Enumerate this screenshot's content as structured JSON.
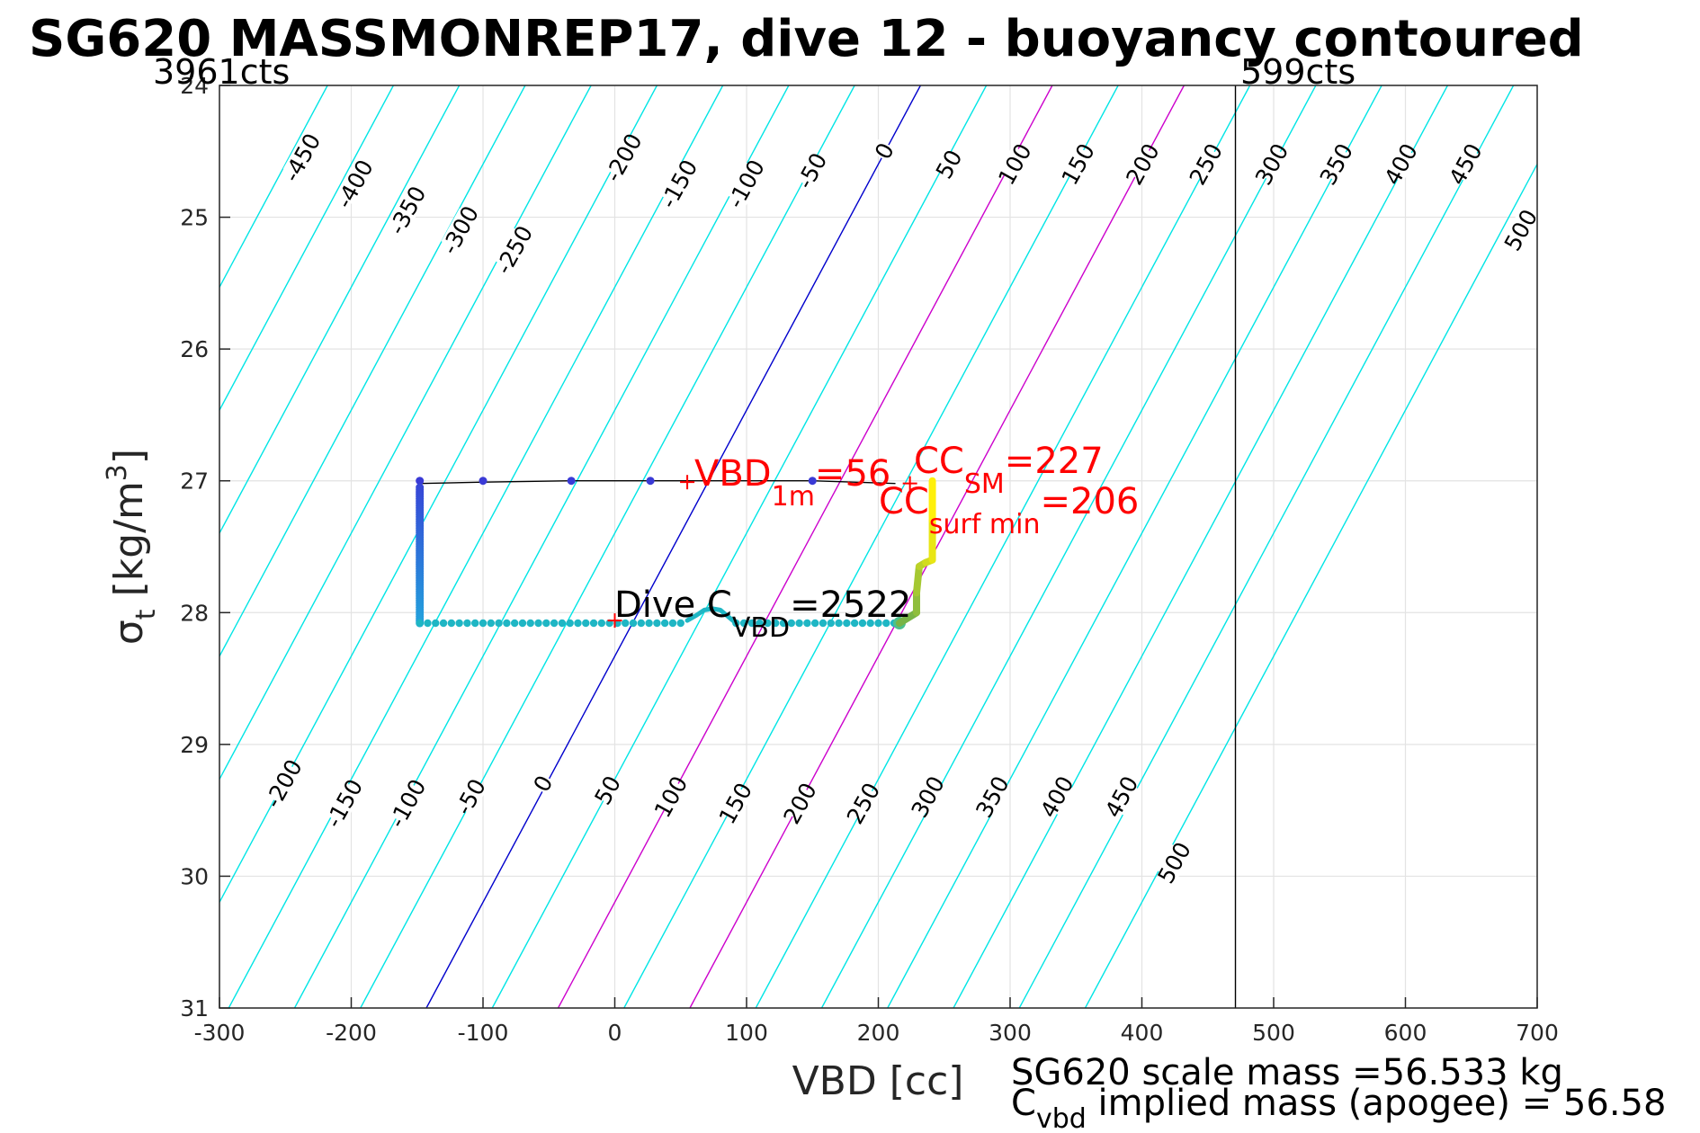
{
  "title": "SG620 MASSMONREP17, dive 12 - buoyancy contoured",
  "chart_data": {
    "type": "scatter",
    "xlabel": "VBD [cc]",
    "ylabel_main": "σ",
    "ylabel_sub": "t",
    "ylabel_unit": " [kg/m",
    "ylabel_sup": "3",
    "ylabel_close": "]",
    "xlim": [
      -300,
      700
    ],
    "ylim": [
      24,
      31
    ],
    "y_reversed": true,
    "grid": true,
    "xticks": [
      -300,
      -200,
      -100,
      0,
      100,
      200,
      300,
      400,
      500,
      600,
      700
    ],
    "xtick_labels": [
      "-300",
      "-200",
      "-100",
      "0",
      "100",
      "200",
      "300",
      "400",
      "500",
      "600",
      "700"
    ],
    "yticks": [
      24,
      25,
      26,
      27,
      28,
      29,
      30,
      31
    ],
    "ytick_labels": [
      "24",
      "25",
      "26",
      "27",
      "28",
      "29",
      "30",
      "31"
    ],
    "contours": {
      "levels": [
        -450,
        -400,
        -350,
        -300,
        -250,
        -200,
        -150,
        -100,
        -50,
        0,
        50,
        100,
        150,
        200,
        250,
        300,
        350,
        400,
        450,
        500
      ],
      "x_at_top_zero": 232,
      "x_at_bottom_zero": -143,
      "highlight_colors": {
        "0": "#0000cc",
        "100": "#cc00cc",
        "200": "#cc00cc"
      },
      "default_color": "#00e5e5",
      "top_labels": [
        {
          "text": "-450",
          "x": -237,
          "y": 24.55
        },
        {
          "text": "-400",
          "x": -197,
          "y": 24.75
        },
        {
          "text": "-350",
          "x": -157,
          "y": 24.95
        },
        {
          "text": "-300",
          "x": -117,
          "y": 25.1
        },
        {
          "text": "-250",
          "x": -76,
          "y": 25.25
        },
        {
          "text": "-200",
          "x": 7,
          "y": 24.55
        },
        {
          "text": "-150",
          "x": 49,
          "y": 24.75
        },
        {
          "text": "-100",
          "x": 100,
          "y": 24.75
        },
        {
          "text": "-50",
          "x": 150,
          "y": 24.65
        },
        {
          "text": "0",
          "x": 205,
          "y": 24.5
        },
        {
          "text": "50",
          "x": 254,
          "y": 24.6
        },
        {
          "text": "100",
          "x": 304,
          "y": 24.6
        },
        {
          "text": "150",
          "x": 352,
          "y": 24.6
        },
        {
          "text": "200",
          "x": 401,
          "y": 24.6
        },
        {
          "text": "250",
          "x": 449,
          "y": 24.6
        },
        {
          "text": "300",
          "x": 499,
          "y": 24.6
        },
        {
          "text": "350",
          "x": 548,
          "y": 24.6
        },
        {
          "text": "400",
          "x": 597,
          "y": 24.6
        },
        {
          "text": "450",
          "x": 646,
          "y": 24.6
        },
        {
          "text": "500",
          "x": 688,
          "y": 25.1
        }
      ],
      "bottom_labels": [
        {
          "text": "-200",
          "x": -251,
          "y": 29.3
        },
        {
          "text": "-150",
          "x": -205,
          "y": 29.45
        },
        {
          "text": "-100",
          "x": -157,
          "y": 29.45
        },
        {
          "text": "-50",
          "x": -109,
          "y": 29.4
        },
        {
          "text": "0",
          "x": -54,
          "y": 29.3
        },
        {
          "text": "50",
          "x": -5,
          "y": 29.35
        },
        {
          "text": "100",
          "x": 43,
          "y": 29.4
        },
        {
          "text": "150",
          "x": 92,
          "y": 29.45
        },
        {
          "text": "200",
          "x": 141,
          "y": 29.45
        },
        {
          "text": "250",
          "x": 189,
          "y": 29.45
        },
        {
          "text": "300",
          "x": 238,
          "y": 29.4
        },
        {
          "text": "350",
          "x": 287,
          "y": 29.4
        },
        {
          "text": "400",
          "x": 336,
          "y": 29.4
        },
        {
          "text": "450",
          "x": 385,
          "y": 29.4
        },
        {
          "text": "500",
          "x": 425,
          "y": 29.9
        }
      ]
    },
    "reference_line_x": 471,
    "dive_trace": {
      "top_path": [
        [
          -148,
          27.02
        ],
        [
          -100,
          27.01
        ],
        [
          -33,
          27.0
        ],
        [
          27,
          27.0
        ],
        [
          83,
          27.0
        ],
        [
          150,
          27.0
        ],
        [
          213,
          27.02
        ]
      ],
      "top_points": [
        -148,
        -100,
        -33,
        27,
        150
      ],
      "vertical_x": -148,
      "vertical_y": [
        27.05,
        28.08
      ],
      "bottom_y": 28.08,
      "bottom_x": [
        -148,
        55
      ],
      "hump": [
        [
          55,
          28.06
        ],
        [
          62,
          28.02
        ],
        [
          68,
          27.98
        ],
        [
          74,
          27.97
        ],
        [
          80,
          27.98
        ],
        [
          86,
          28.03
        ],
        [
          92,
          28.08
        ]
      ],
      "bottom2_x": [
        92,
        216
      ],
      "climb_path": [
        [
          216,
          28.08
        ],
        [
          229,
          28.0
        ],
        [
          229,
          27.85
        ],
        [
          231,
          27.65
        ],
        [
          236,
          27.62
        ],
        [
          241,
          27.6
        ],
        [
          241,
          27.3
        ],
        [
          241,
          27.0
        ]
      ]
    },
    "markers": [
      {
        "x": 55,
        "y": 27.01,
        "color": "#ff0000"
      },
      {
        "x": 0,
        "y": 28.06,
        "color": "#ff0000"
      },
      {
        "x": 224,
        "y": 27.02,
        "color": "#ff0000"
      }
    ],
    "annotations": {
      "vbd_1m": {
        "main": "VBD",
        "sub": "1m",
        "tail": "=56",
        "color": "#ff0000"
      },
      "cc_sm": {
        "main": "CC",
        "sub": "SM",
        "tail": "=227",
        "color": "#ff0000"
      },
      "cc_surf_min": {
        "main": "CC",
        "sub": "surf min",
        "tail": "=206",
        "color": "#ff0000"
      },
      "dive_c_vbd": {
        "main": "Dive C",
        "sub": "VBD",
        "tail": "=2522",
        "color": "#000000"
      }
    },
    "counts": {
      "left": "3961cts",
      "right": "599cts"
    }
  },
  "footer": {
    "line1": "SG620 scale mass =56.533 kg",
    "line2_main": "C",
    "line2_sub": "vbd",
    "line2_tail": " implied mass (apogee) = 56.58"
  }
}
